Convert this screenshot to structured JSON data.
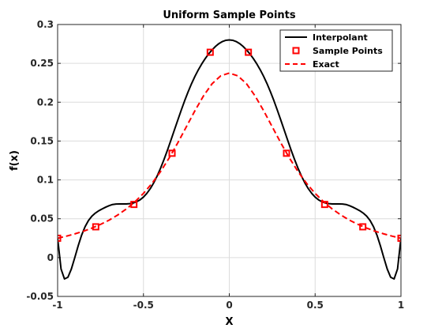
{
  "chart_data": {
    "type": "line",
    "title": "Uniform Sample Points",
    "xlabel": "X",
    "ylabel": "f(x)",
    "xlim": [
      -1,
      1
    ],
    "ylim": [
      -0.05,
      0.3
    ],
    "xticks": [
      -1,
      -0.5,
      0,
      0.5,
      1
    ],
    "xtick_labels": [
      "-1",
      "-0.5",
      "0",
      "0.5",
      "1"
    ],
    "yticks": [
      -0.05,
      0,
      0.05,
      0.1,
      0.15,
      0.2,
      0.25,
      0.3
    ],
    "ytick_labels": [
      "-0.05",
      "0",
      "0.05",
      "0.1",
      "0.15",
      "0.2",
      "0.25",
      "0.3"
    ],
    "grid": true,
    "legend": {
      "location": "top-right"
    },
    "series": [
      {
        "name": "Interpolant",
        "style": "solid",
        "color": "#000000",
        "x": [
          -1,
          -0.98,
          -0.96,
          -0.94,
          -0.92,
          -0.9,
          -0.88,
          -0.86,
          -0.84,
          -0.82,
          -0.8,
          -0.78,
          -0.76,
          -0.74,
          -0.72,
          -0.7,
          -0.68,
          -0.66,
          -0.64,
          -0.62,
          -0.6,
          -0.58,
          -0.56,
          -0.54,
          -0.52,
          -0.5,
          -0.48,
          -0.46,
          -0.44,
          -0.42,
          -0.4,
          -0.38,
          -0.36,
          -0.34,
          -0.32,
          -0.3,
          -0.28,
          -0.26,
          -0.24,
          -0.22,
          -0.2,
          -0.18,
          -0.16,
          -0.14,
          -0.12,
          -0.1,
          -0.08,
          -0.06,
          -0.04,
          -0.02,
          0,
          0.02,
          0.04,
          0.06,
          0.08,
          0.1,
          0.12,
          0.14,
          0.16,
          0.18,
          0.2,
          0.22,
          0.24,
          0.26,
          0.28,
          0.3,
          0.32,
          0.34,
          0.36,
          0.38,
          0.4,
          0.42,
          0.44,
          0.46,
          0.48,
          0.5,
          0.52,
          0.54,
          0.56,
          0.58,
          0.6,
          0.62,
          0.64,
          0.66,
          0.68,
          0.7,
          0.72,
          0.74,
          0.76,
          0.78,
          0.8,
          0.82,
          0.84,
          0.86,
          0.88,
          0.9,
          0.92,
          0.94,
          0.96,
          0.98,
          1
        ],
        "y": [
          0.0249,
          -0.0147,
          -0.0275,
          -0.0253,
          -0.0147,
          0.0,
          0.0153,
          0.029,
          0.0398,
          0.0478,
          0.0534,
          0.0573,
          0.0603,
          0.0627,
          0.0649,
          0.0668,
          0.0683,
          0.0689,
          0.069,
          0.069,
          0.0691,
          0.0694,
          0.0702,
          0.0718,
          0.0743,
          0.0779,
          0.0827,
          0.0888,
          0.0963,
          0.1051,
          0.1152,
          0.1264,
          0.1384,
          0.1511,
          0.1641,
          0.177,
          0.1897,
          0.2019,
          0.2133,
          0.2238,
          0.2333,
          0.2418,
          0.2494,
          0.2562,
          0.2622,
          0.2674,
          0.2719,
          0.2755,
          0.2781,
          0.2797,
          0.2802,
          0.2797,
          0.2781,
          0.2755,
          0.2719,
          0.2674,
          0.2622,
          0.2562,
          0.2494,
          0.2418,
          0.2333,
          0.2238,
          0.2133,
          0.2019,
          0.1897,
          0.177,
          0.1641,
          0.1511,
          0.1384,
          0.1264,
          0.1152,
          0.1051,
          0.0963,
          0.0888,
          0.0827,
          0.0779,
          0.0743,
          0.0718,
          0.0702,
          0.0694,
          0.0691,
          0.069,
          0.069,
          0.0689,
          0.0683,
          0.0668,
          0.0649,
          0.0627,
          0.0603,
          0.0573,
          0.0534,
          0.0478,
          0.0398,
          0.029,
          0.0153,
          0.0,
          -0.0147,
          -0.0253,
          -0.0275,
          -0.0147,
          0.0249
        ]
      },
      {
        "name": "Sample Points",
        "style": "markers",
        "marker": "square",
        "color": "#ff0000",
        "x": [
          -1,
          -0.7778,
          -0.5556,
          -0.3333,
          -0.1111,
          0.1111,
          0.3333,
          0.5556,
          0.7778,
          1
        ],
        "y": [
          0.0249,
          0.0396,
          0.0684,
          0.1343,
          0.2643,
          0.2643,
          0.1343,
          0.0684,
          0.0396,
          0.0249
        ]
      },
      {
        "name": "Exact",
        "style": "dashed",
        "color": "#ff0000",
        "x": [
          -1,
          -0.95,
          -0.9,
          -0.85,
          -0.8,
          -0.75,
          -0.7,
          -0.65,
          -0.6,
          -0.55,
          -0.5,
          -0.45,
          -0.4,
          -0.35,
          -0.3,
          -0.25,
          -0.2,
          -0.15,
          -0.1,
          -0.05,
          0,
          0.05,
          0.1,
          0.15,
          0.2,
          0.25,
          0.3,
          0.35,
          0.4,
          0.45,
          0.5,
          0.55,
          0.6,
          0.65,
          0.7,
          0.75,
          0.8,
          0.85,
          0.9,
          0.95,
          1
        ],
        "y": [
          0.0249,
          0.0275,
          0.0305,
          0.0339,
          0.038,
          0.0427,
          0.0482,
          0.0548,
          0.0625,
          0.0717,
          0.0826,
          0.0956,
          0.1108,
          0.1283,
          0.1477,
          0.1684,
          0.1891,
          0.2082,
          0.2238,
          0.2339,
          0.2375,
          0.2339,
          0.2238,
          0.2082,
          0.1891,
          0.1684,
          0.1477,
          0.1283,
          0.1108,
          0.0956,
          0.0826,
          0.0717,
          0.0625,
          0.0548,
          0.0482,
          0.0427,
          0.038,
          0.0339,
          0.0305,
          0.0275,
          0.0249
        ]
      }
    ]
  }
}
